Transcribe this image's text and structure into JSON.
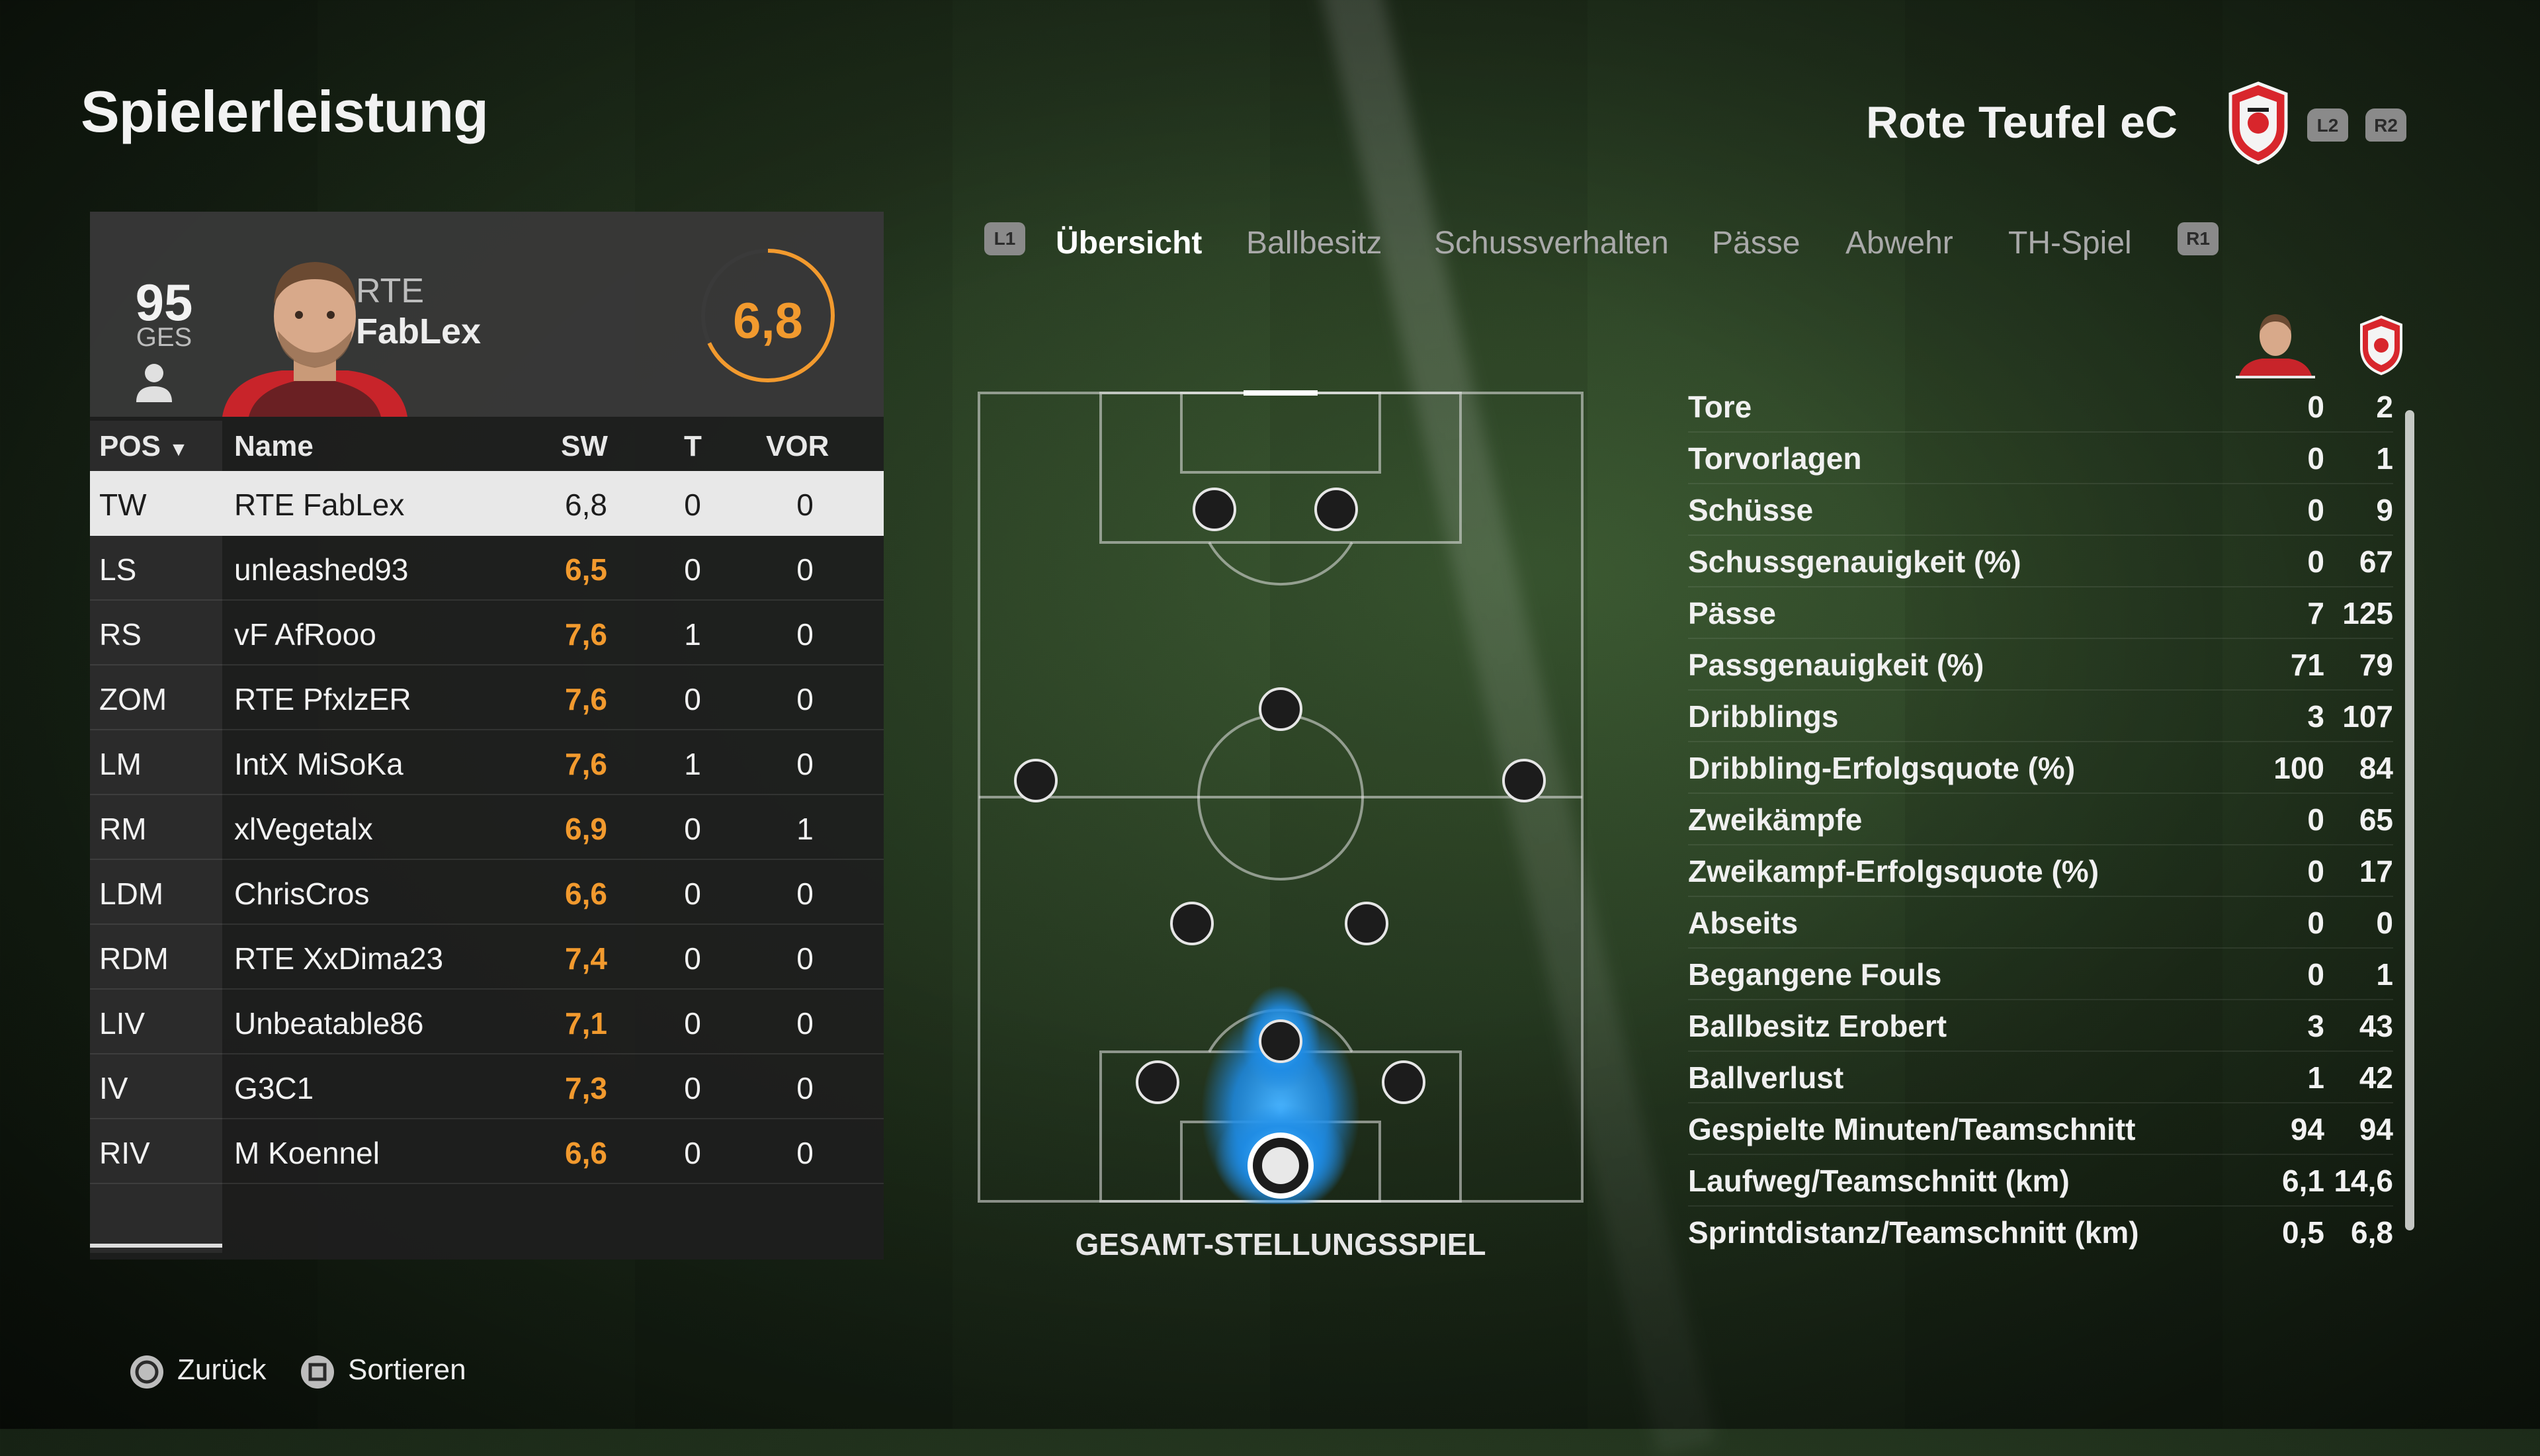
{
  "header": {
    "title": "Spielerleistung",
    "team_name": "Rote Teufel eC",
    "l2": "L2",
    "r2": "R2"
  },
  "player_card": {
    "overall": "95",
    "overall_label": "GES",
    "club": "RTE",
    "name": "FabLex",
    "rating": "6,8",
    "rating_value": 6.8,
    "rating_color": "#f29a2e"
  },
  "table": {
    "headers": {
      "pos": "POS",
      "name": "Name",
      "sw": "SW",
      "t": "T",
      "vor": "VOR"
    },
    "rows": [
      {
        "pos": "TW",
        "name": "RTE FabLex",
        "sw": "6,8",
        "t": "0",
        "vor": "0"
      },
      {
        "pos": "LS",
        "name": "unleashed93",
        "sw": "6,5",
        "t": "0",
        "vor": "0"
      },
      {
        "pos": "RS",
        "name": "vF AfRooo",
        "sw": "7,6",
        "t": "1",
        "vor": "0"
      },
      {
        "pos": "ZOM",
        "name": "RTE PfxlzER",
        "sw": "7,6",
        "t": "0",
        "vor": "0"
      },
      {
        "pos": "LM",
        "name": "IntX MiSoKa",
        "sw": "7,6",
        "t": "1",
        "vor": "0"
      },
      {
        "pos": "RM",
        "name": "xlVegetalx",
        "sw": "6,9",
        "t": "0",
        "vor": "1"
      },
      {
        "pos": "LDM",
        "name": "ChrisCros",
        "sw": "6,6",
        "t": "0",
        "vor": "0"
      },
      {
        "pos": "RDM",
        "name": "RTE XxDima23",
        "sw": "7,4",
        "t": "0",
        "vor": "0"
      },
      {
        "pos": "LIV",
        "name": "Unbeatable86",
        "sw": "7,1",
        "t": "0",
        "vor": "0"
      },
      {
        "pos": "IV",
        "name": "G3C1",
        "sw": "7,3",
        "t": "0",
        "vor": "0"
      },
      {
        "pos": "RIV",
        "name": "M Koennel",
        "sw": "6,6",
        "t": "0",
        "vor": "0"
      }
    ]
  },
  "tabs": {
    "l1": "L1",
    "r1": "R1",
    "items": [
      "Übersicht",
      "Ballbesitz",
      "Schussverhalten",
      "Pässe",
      "Abwehr",
      "TH-Spiel"
    ],
    "active": "Übersicht"
  },
  "pitch": {
    "label": "GESAMT-STELLUNGSSPIEL",
    "heat_color": "#1e8ce6"
  },
  "stats": [
    {
      "label": "Tore",
      "player": "0",
      "team": "2"
    },
    {
      "label": "Torvorlagen",
      "player": "0",
      "team": "1"
    },
    {
      "label": "Schüsse",
      "player": "0",
      "team": "9"
    },
    {
      "label": "Schussgenauigkeit (%)",
      "player": "0",
      "team": "67"
    },
    {
      "label": "Pässe",
      "player": "7",
      "team": "125"
    },
    {
      "label": "Passgenauigkeit (%)",
      "player": "71",
      "team": "79"
    },
    {
      "label": "Dribblings",
      "player": "3",
      "team": "107"
    },
    {
      "label": "Dribbling-Erfolgsquote (%)",
      "player": "100",
      "team": "84"
    },
    {
      "label": "Zweikämpfe",
      "player": "0",
      "team": "65"
    },
    {
      "label": "Zweikampf-Erfolgsquote (%)",
      "player": "0",
      "team": "17"
    },
    {
      "label": "Abseits",
      "player": "0",
      "team": "0"
    },
    {
      "label": "Begangene Fouls",
      "player": "0",
      "team": "1"
    },
    {
      "label": "Ballbesitz Erobert",
      "player": "3",
      "team": "43"
    },
    {
      "label": "Ballverlust",
      "player": "1",
      "team": "42"
    },
    {
      "label": "Gespielte Minuten/Teamschnitt",
      "player": "94",
      "team": "94"
    },
    {
      "label": "Laufweg/Teamschnitt (km)",
      "player": "6,1",
      "team": "14,6"
    },
    {
      "label": "Sprintdistanz/Teamschnitt (km)",
      "player": "0,5",
      "team": "6,8"
    }
  ],
  "footer": {
    "back": "Zurück",
    "sort": "Sortieren"
  },
  "colors": {
    "accent_orange": "#f29a2e",
    "crest_red": "#d8262c",
    "selected_row": "#e8e8e8"
  }
}
